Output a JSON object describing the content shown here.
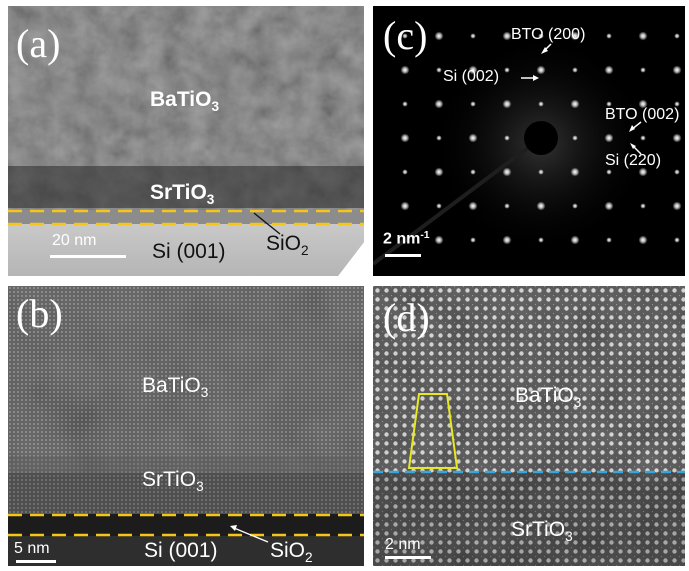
{
  "panels": {
    "a": {
      "letter": "(a)",
      "label_top": "BaTiO",
      "label_top_sub": "3",
      "label_mid": "SrTiO",
      "label_mid_sub": "3",
      "label_bottom": "Si (001)",
      "label_oxide": "SiO",
      "label_oxide_sub": "2",
      "scale_bar": "20 nm"
    },
    "b": {
      "letter": "(b)",
      "label_top": "BaTiO",
      "label_top_sub": "3",
      "label_mid": "SrTiO",
      "label_mid_sub": "3",
      "label_bottom": "Si (001)",
      "label_oxide": "SiO",
      "label_oxide_sub": "2",
      "scale_bar": "5 nm"
    },
    "c": {
      "letter": "(c)",
      "spot_bto200": "BTO (200)",
      "spot_si002": "Si (002)",
      "spot_bto002": "BTO (002)",
      "spot_si220": "Si (220)",
      "scale_bar": "2 nm",
      "scale_bar_sup": "-1"
    },
    "d": {
      "letter": "(d)",
      "label_top": "BaTiO",
      "label_top_sub": "3",
      "label_bottom": "SrTiO",
      "label_bottom_sub": "3",
      "scale_bar": "2 nm"
    }
  },
  "colors": {
    "interface_dash": "#f5c518",
    "interface_dash_d": "#3aa6d8",
    "unit_cell_outline": "#e8e820"
  }
}
